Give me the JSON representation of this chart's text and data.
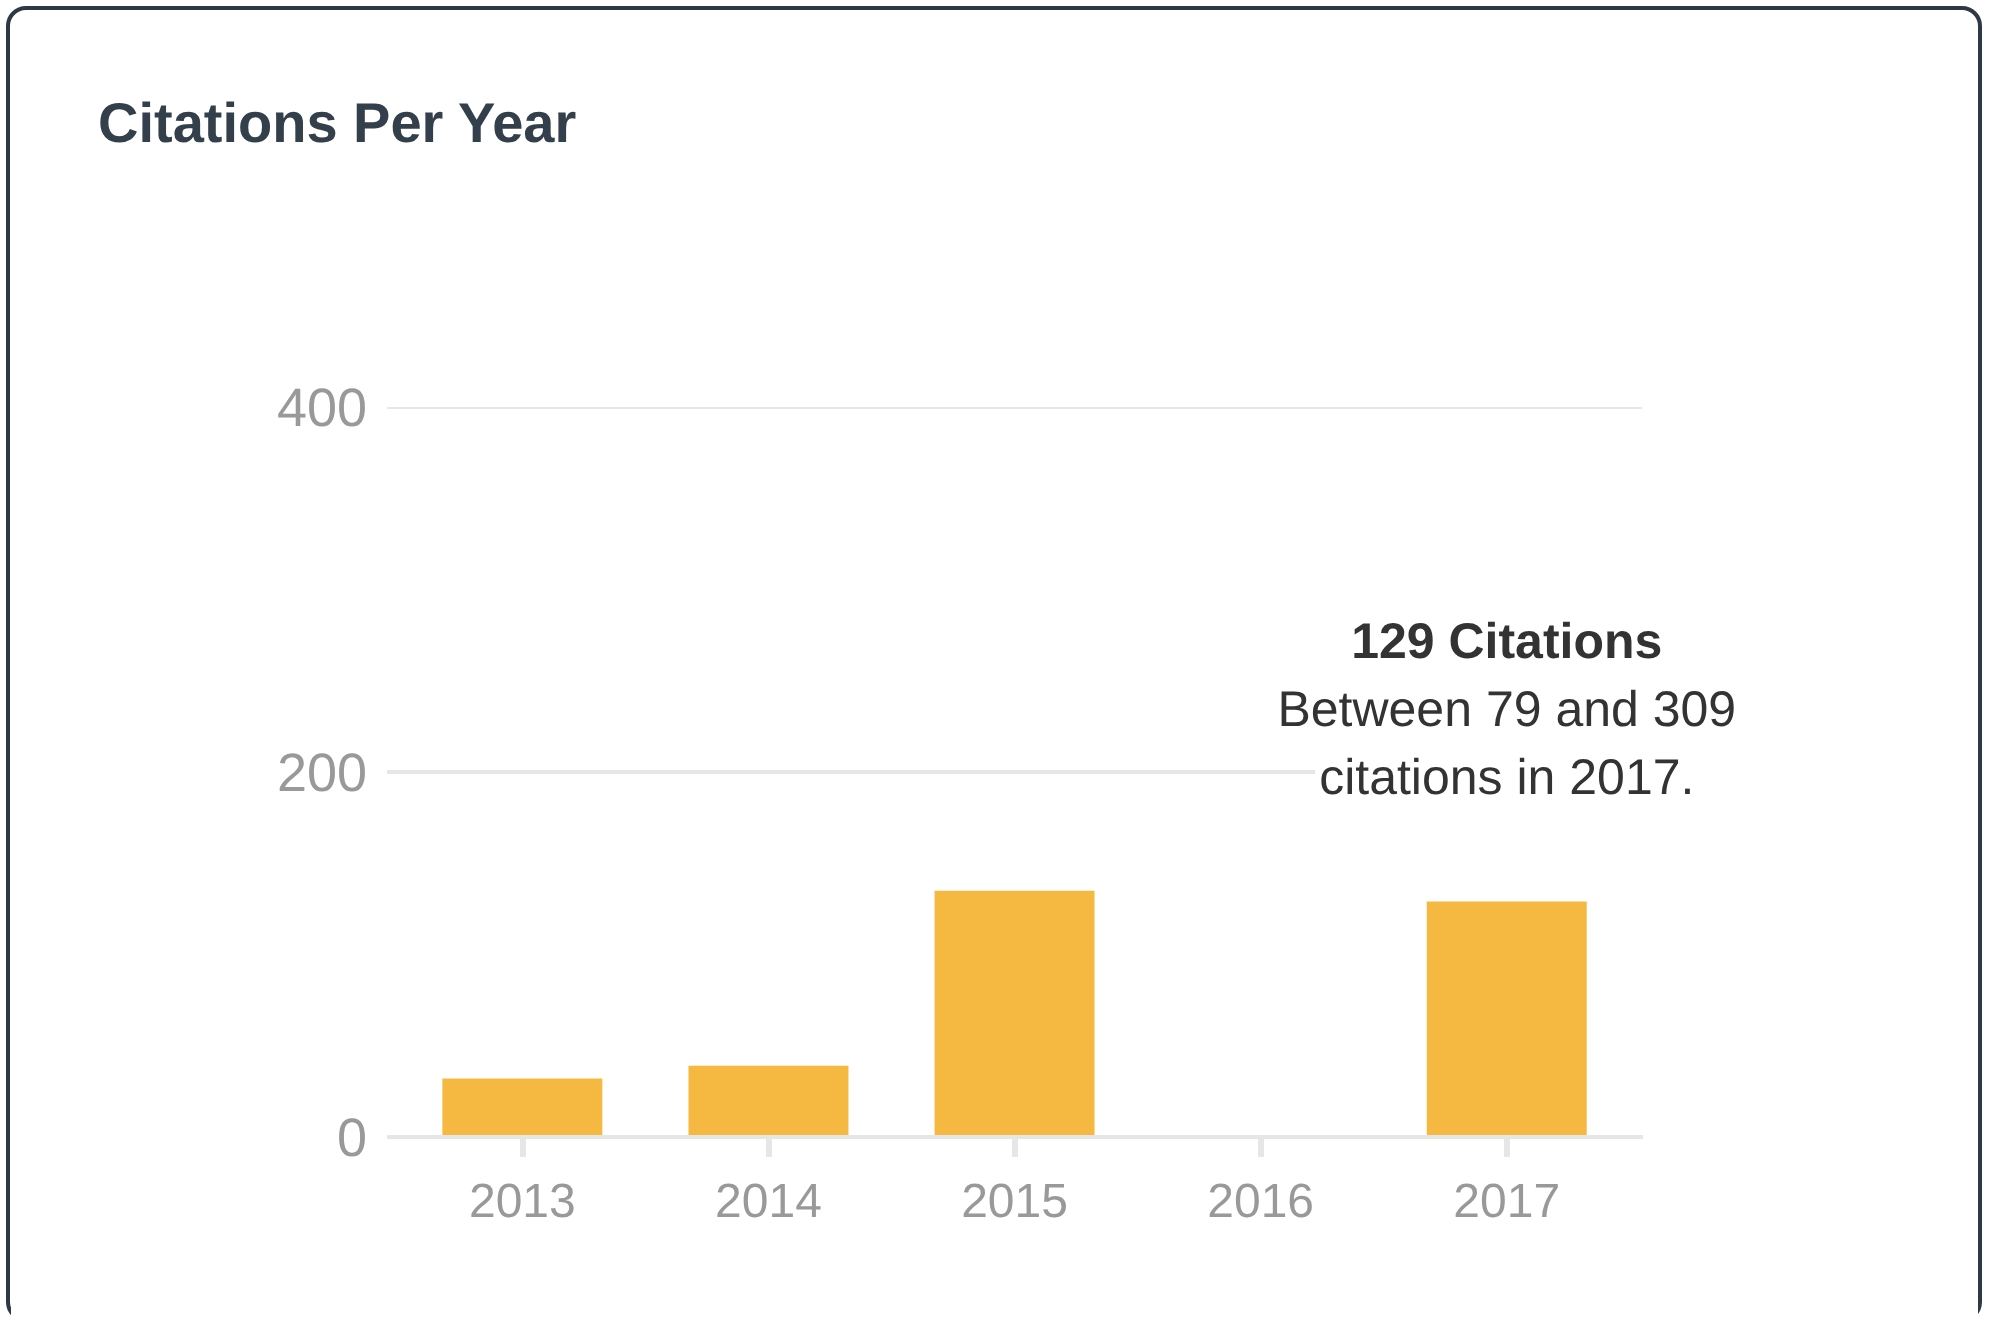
{
  "chart_data": {
    "type": "bar",
    "title": "Citations Per Year",
    "categories": [
      "2013",
      "2014",
      "2015",
      "2016",
      "2017"
    ],
    "values": [
      32,
      39,
      135,
      null,
      129
    ],
    "color": "#f5b942",
    "ylim": [
      0,
      400
    ],
    "yticks": [
      0,
      200,
      400
    ],
    "grid": "y",
    "annotations": [
      {
        "text": "129 Citations\nBetween 79 and 309\ncitations in 2017.",
        "x": "2017",
        "y": 129
      }
    ]
  }
}
